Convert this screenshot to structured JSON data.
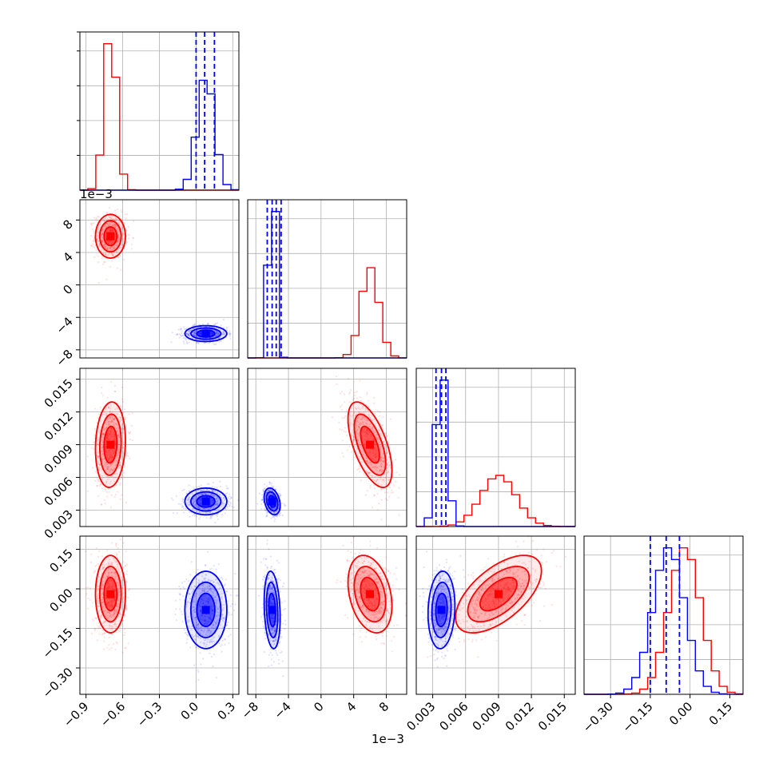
{
  "chart_data": {
    "type": "corner",
    "series": [
      {
        "name": "",
        "color": "#ff0000"
      },
      {
        "name": "",
        "color": "#0000ff"
      }
    ],
    "parameters": [
      {
        "id": "p0",
        "range": [
          -0.95,
          0.35
        ],
        "ticks": [
          -0.9,
          -0.6,
          -0.3,
          0.0,
          0.3
        ],
        "tick_labels": [
          "−0.9",
          "−0.6",
          "−0.3",
          "0.0",
          "0.3"
        ]
      },
      {
        "id": "p1",
        "range": [
          -0.009,
          0.0105
        ],
        "ticks": [
          -0.008,
          -0.004,
          0.0,
          0.004,
          0.008
        ],
        "tick_labels": [
          "−8",
          "−4",
          "0",
          "4",
          "8"
        ],
        "offset_label": "1e−3"
      },
      {
        "id": "p2",
        "range": [
          0.0015,
          0.016
        ],
        "ticks": [
          0.003,
          0.006,
          0.009,
          0.012,
          0.015
        ],
        "tick_labels": [
          "0.003",
          "0.006",
          "0.009",
          "0.012",
          "0.015"
        ]
      },
      {
        "id": "p3",
        "range": [
          -0.4,
          0.2
        ],
        "ticks": [
          -0.3,
          -0.15,
          0.0,
          0.15
        ],
        "tick_labels": [
          "−0.30",
          "−0.15",
          "0.00",
          "0.15"
        ]
      }
    ],
    "marginals": [
      {
        "param": "p0",
        "red": {
          "mean": -0.7,
          "sd": 0.05
        },
        "blue": {
          "mean": 0.08,
          "sd": 0.07
        },
        "quantiles_blue": [
          0.0,
          0.07,
          0.15
        ]
      },
      {
        "param": "p1",
        "red": {
          "mean": 0.006,
          "sd": 0.0011
        },
        "blue": {
          "mean": -0.006,
          "sd": 0.0004
        },
        "quantiles_blue": [
          -0.0066,
          -0.006,
          -0.0055,
          -0.0049
        ]
      },
      {
        "param": "p2",
        "red": {
          "mean": 0.009,
          "sd": 0.0016
        },
        "blue": {
          "mean": 0.0038,
          "sd": 0.0005
        },
        "quantiles_blue": [
          0.0033,
          0.0038,
          0.0042
        ]
      },
      {
        "param": "p3",
        "red": {
          "mean": -0.02,
          "sd": 0.06
        },
        "blue": {
          "mean": -0.08,
          "sd": 0.06
        },
        "quantiles_blue": [
          -0.15,
          -0.09,
          -0.04
        ]
      }
    ],
    "pairs": [
      {
        "x": "p0",
        "y": "p1",
        "red": {
          "mx": -0.7,
          "my": 0.006,
          "sx": 0.05,
          "sy": 0.0011,
          "rho": 0.0
        },
        "blue": {
          "mx": 0.08,
          "my": -0.006,
          "sx": 0.07,
          "sy": 0.0004,
          "rho": 0.0
        }
      },
      {
        "x": "p0",
        "y": "p2",
        "red": {
          "mx": -0.7,
          "my": 0.009,
          "sx": 0.05,
          "sy": 0.0016,
          "rho": 0.1
        },
        "blue": {
          "mx": 0.08,
          "my": 0.0038,
          "sx": 0.07,
          "sy": 0.0005,
          "rho": 0.0
        }
      },
      {
        "x": "p1",
        "y": "p2",
        "red": {
          "mx": 0.006,
          "my": 0.009,
          "sx": 0.0011,
          "sy": 0.0016,
          "rho": -0.6
        },
        "blue": {
          "mx": -0.006,
          "my": 0.0038,
          "sx": 0.0004,
          "sy": 0.0005,
          "rho": -0.3
        }
      },
      {
        "x": "p0",
        "y": "p3",
        "red": {
          "mx": -0.7,
          "my": -0.02,
          "sx": 0.05,
          "sy": 0.06,
          "rho": 0.0
        },
        "blue": {
          "mx": 0.08,
          "my": -0.08,
          "sx": 0.07,
          "sy": 0.06,
          "rho": 0.0
        }
      },
      {
        "x": "p1",
        "y": "p3",
        "red": {
          "mx": 0.006,
          "my": -0.02,
          "sx": 0.0011,
          "sy": 0.06,
          "rho": -0.3
        },
        "blue": {
          "mx": -0.006,
          "my": -0.08,
          "sx": 0.0004,
          "sy": 0.06,
          "rho": -0.2
        }
      },
      {
        "x": "p2",
        "y": "p3",
        "red": {
          "mx": 0.009,
          "my": -0.02,
          "sx": 0.0016,
          "sy": 0.06,
          "rho": 0.6
        },
        "blue": {
          "mx": 0.0038,
          "my": -0.08,
          "sx": 0.0005,
          "sy": 0.06,
          "rho": 0.1
        }
      }
    ],
    "grid": true,
    "quantile_line_style": "dashed"
  }
}
